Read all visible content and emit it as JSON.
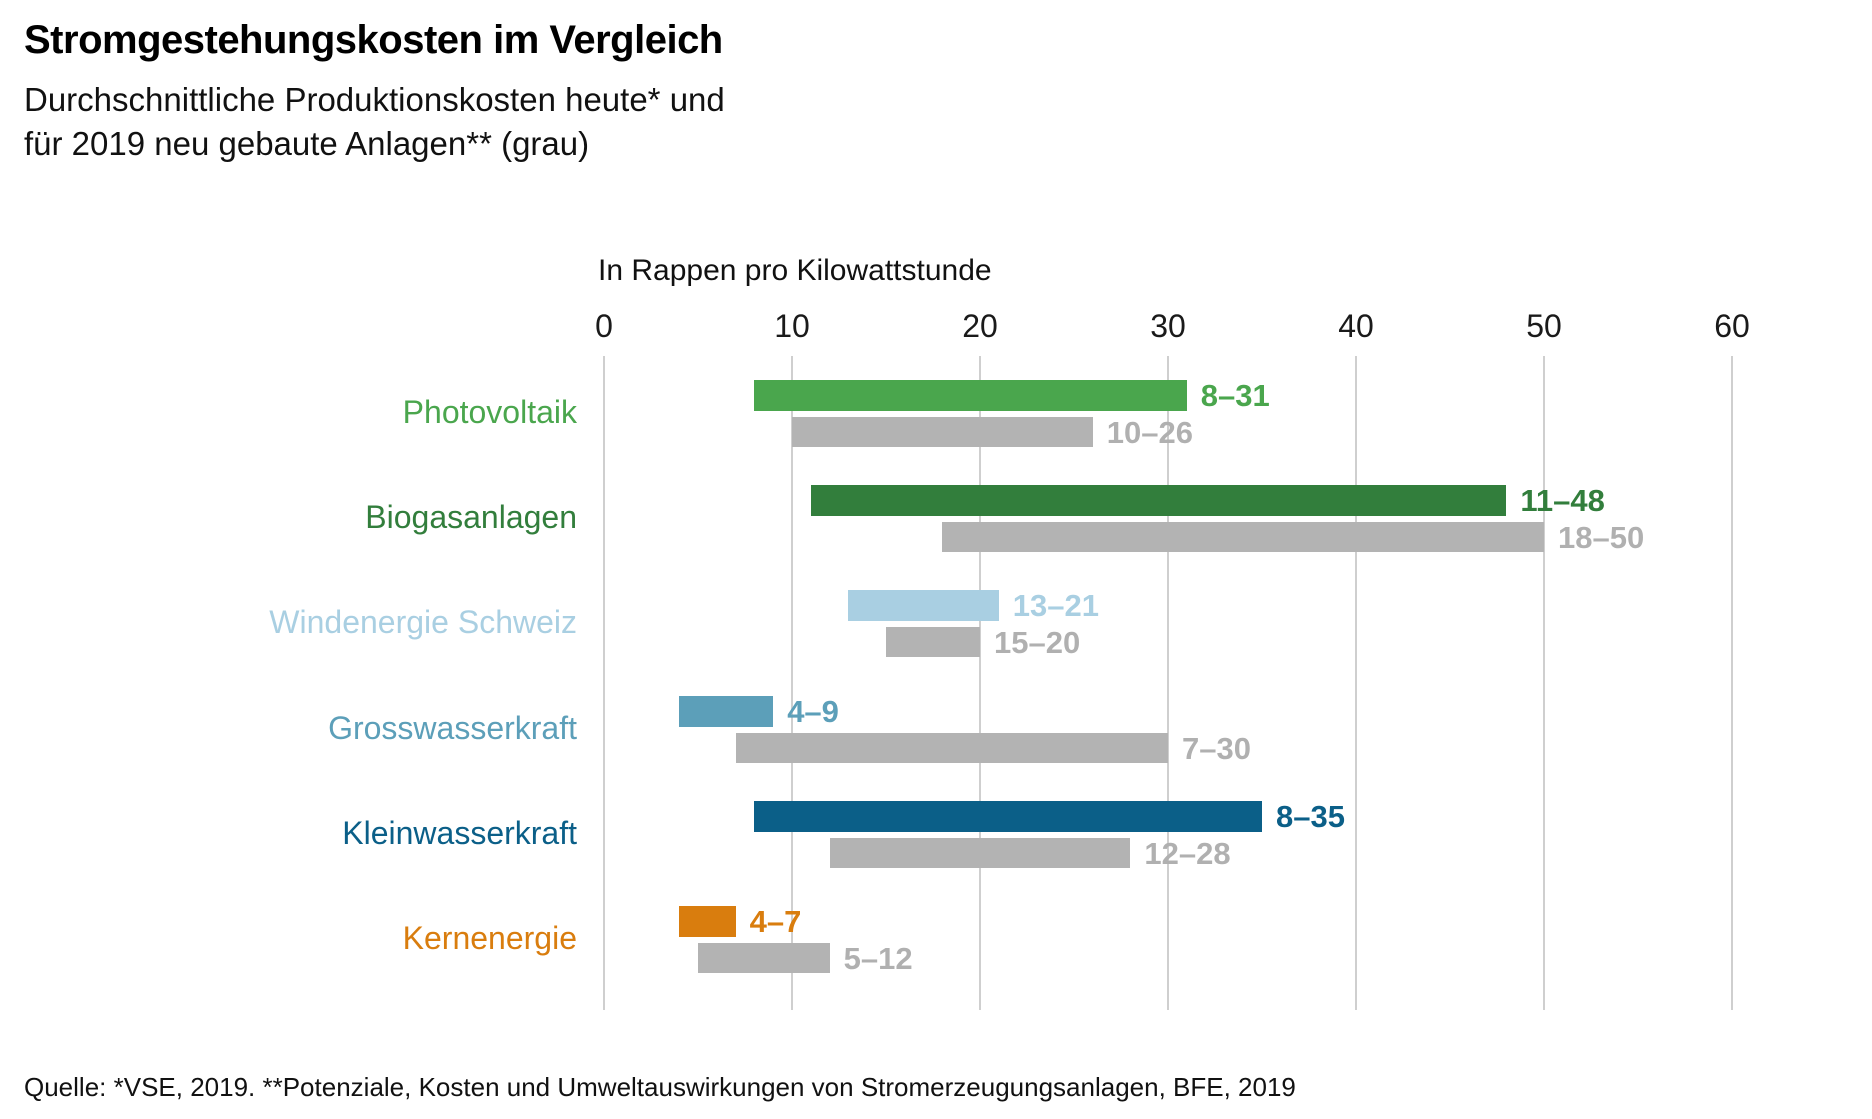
{
  "title": "Stromgestehungskosten im Vergleich",
  "subtitle": "Durchschnittliche Produktionskosten heute* und\nfür 2019 neu gebaute Anlagen** (grau)",
  "source": "Quelle: *VSE, 2019. **Potenziale, Kosten und Umweltauswirkungen von Stromerzeugungsanlagen, BFE, 2019",
  "chart_data": {
    "type": "bar",
    "orientation": "horizontal-range",
    "axis_title": "In Rappen pro Kilowattstunde",
    "xlim": [
      0,
      60
    ],
    "x_ticks": [
      0,
      10,
      20,
      30,
      40,
      50,
      60
    ],
    "grid": true,
    "gridline_color": "#cfcfcf",
    "gray_bar_color": "#b3b3b3",
    "gray_label_color": "#b0b0b0",
    "series_legend": {
      "colored": "Produktionskosten heute*",
      "gray": "für 2019 neu gebaute Anlagen**"
    },
    "categories": [
      {
        "label": "Photovoltaik",
        "color": "#4aa64d",
        "today": [
          8,
          31
        ],
        "today_label": "8–31",
        "new_2019": [
          10,
          26
        ],
        "new_2019_label": "10–26"
      },
      {
        "label": "Biogasanlagen",
        "color": "#327e3c",
        "today": [
          11,
          48
        ],
        "today_label": "11–48",
        "new_2019": [
          18,
          50
        ],
        "new_2019_label": "18–50"
      },
      {
        "label": "Windenergie Schweiz",
        "color": "#a9cfe2",
        "today": [
          13,
          21
        ],
        "today_label": "13–21",
        "new_2019": [
          15,
          20
        ],
        "new_2019_label": "15–20"
      },
      {
        "label": "Grosswasserkraft",
        "color": "#5c9fb9",
        "today": [
          4,
          9
        ],
        "today_label": "4–9",
        "new_2019": [
          7,
          30
        ],
        "new_2019_label": "7–30"
      },
      {
        "label": "Kleinwasserkraft",
        "color": "#0b5f88",
        "today": [
          8,
          35
        ],
        "today_label": "8–35",
        "new_2019": [
          12,
          28
        ],
        "new_2019_label": "12–28"
      },
      {
        "label": "Kernenergie",
        "color": "#d97d0e",
        "today": [
          4,
          7
        ],
        "today_label": "4–7",
        "new_2019": [
          5,
          12
        ],
        "new_2019_label": "5–12"
      }
    ]
  }
}
